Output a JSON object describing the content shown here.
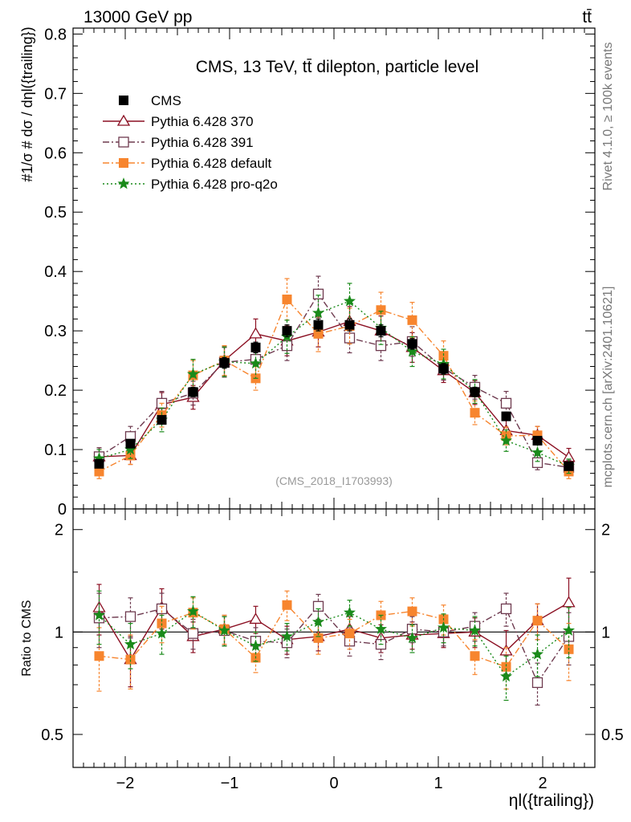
{
  "header": {
    "left": "13000 GeV pp",
    "right": "tt̄"
  },
  "side_labels": {
    "rivet": "Rivet 4.1.0, ≥ 100k events",
    "mcplots": "mcplots.cern.ch [arXiv:2401.10621]"
  },
  "chart_data": [
    {
      "type": "scatter",
      "panel": "main",
      "title": "CMS, 13 TeV, tt̄ dilepton, particle level",
      "watermark": "(CMS_2018_I1703993)",
      "ylabel": "#1/σ # dσ / dηl({trailing})",
      "xlabel": "ηl({trailing})",
      "xlim": [
        -2.5,
        2.5
      ],
      "ylim": [
        0,
        0.81
      ],
      "yticks": [
        "0",
        "0.1",
        "0.2",
        "0.3",
        "0.4",
        "0.5",
        "0.6",
        "0.7",
        "0.8"
      ],
      "x": [
        -2.25,
        -1.95,
        -1.65,
        -1.35,
        -1.05,
        -0.75,
        -0.45,
        -0.15,
        0.15,
        0.45,
        0.75,
        1.05,
        1.35,
        1.65,
        1.95,
        2.25
      ],
      "series": [
        {
          "name": "CMS",
          "color": "#000000",
          "marker": "filled-square",
          "line": "none",
          "values": [
            0.076,
            0.11,
            0.15,
            0.197,
            0.246,
            0.272,
            0.3,
            0.31,
            0.31,
            0.3,
            0.278,
            0.236,
            0.197,
            0.156,
            0.115,
            0.072
          ],
          "errors": [
            0.006,
            0.006,
            0.007,
            0.008,
            0.009,
            0.009,
            0.01,
            0.01,
            0.01,
            0.01,
            0.009,
            0.009,
            0.008,
            0.007,
            0.006,
            0.006
          ]
        },
        {
          "name": "Pythia 6.428 370",
          "color": "#8b0f22",
          "marker": "open-triangle",
          "line": "solid",
          "values": [
            0.088,
            0.09,
            0.176,
            0.188,
            0.25,
            0.295,
            0.283,
            0.298,
            0.316,
            0.3,
            0.272,
            0.233,
            0.196,
            0.132,
            0.124,
            0.087
          ],
          "errors": [
            0.015,
            0.015,
            0.02,
            0.02,
            0.025,
            0.025,
            0.025,
            0.025,
            0.025,
            0.025,
            0.025,
            0.02,
            0.02,
            0.02,
            0.015,
            0.015
          ]
        },
        {
          "name": "Pythia 6.428 391",
          "color": "#6e3a4f",
          "marker": "open-square",
          "line": "dashdot",
          "values": [
            0.088,
            0.122,
            0.178,
            0.195,
            0.247,
            0.252,
            0.275,
            0.362,
            0.288,
            0.275,
            0.282,
            0.237,
            0.205,
            0.178,
            0.078,
            0.07
          ],
          "errors": [
            0.015,
            0.017,
            0.02,
            0.02,
            0.025,
            0.025,
            0.025,
            0.03,
            0.025,
            0.025,
            0.025,
            0.02,
            0.02,
            0.02,
            0.012,
            0.012
          ]
        },
        {
          "name": "Pythia 6.428 default",
          "color": "#f7852e",
          "marker": "filled-square",
          "line": "dashdot",
          "values": [
            0.063,
            0.09,
            0.158,
            0.225,
            0.25,
            0.22,
            0.353,
            0.295,
            0.308,
            0.335,
            0.318,
            0.258,
            0.162,
            0.123,
            0.124,
            0.063
          ],
          "errors": [
            0.012,
            0.015,
            0.02,
            0.025,
            0.025,
            0.02,
            0.035,
            0.03,
            0.03,
            0.03,
            0.03,
            0.025,
            0.02,
            0.015,
            0.015,
            0.012
          ]
        },
        {
          "name": "Pythia 6.428 pro-q2o",
          "color": "#1a8a1a",
          "marker": "star",
          "line": "dotted",
          "values": [
            0.085,
            0.1,
            0.15,
            0.227,
            0.248,
            0.245,
            0.29,
            0.33,
            0.35,
            0.305,
            0.265,
            0.244,
            0.198,
            0.115,
            0.095,
            0.072
          ],
          "errors": [
            0.015,
            0.015,
            0.02,
            0.025,
            0.025,
            0.025,
            0.028,
            0.03,
            0.03,
            0.028,
            0.025,
            0.025,
            0.02,
            0.018,
            0.015,
            0.012
          ]
        }
      ]
    },
    {
      "type": "scatter",
      "panel": "ratio",
      "ylabel": "Ratio to CMS",
      "xlabel": "ηl({trailing})",
      "xlim": [
        -2.5,
        2.5
      ],
      "ylim": [
        0.4,
        2.3
      ],
      "yscale": "log",
      "yticks": [
        "0.5",
        "1",
        "2"
      ],
      "xticks": [
        "−2",
        "−1",
        "0",
        "1",
        "2"
      ],
      "x": [
        -2.25,
        -1.95,
        -1.65,
        -1.35,
        -1.05,
        -0.75,
        -0.45,
        -0.15,
        0.15,
        0.45,
        0.75,
        1.05,
        1.35,
        1.65,
        1.95,
        2.25
      ],
      "series": [
        {
          "name": "Pythia 6.428 370",
          "color": "#8b0f22",
          "marker": "open-triangle",
          "line": "solid",
          "values": [
            1.18,
            0.83,
            1.18,
            0.97,
            1.02,
            1.09,
            0.95,
            0.97,
            1.02,
            0.96,
            0.98,
            0.99,
            1.0,
            0.88,
            1.08,
            1.22
          ],
          "errors": [
            0.2,
            0.14,
            0.16,
            0.1,
            0.1,
            0.1,
            0.09,
            0.09,
            0.09,
            0.09,
            0.09,
            0.09,
            0.1,
            0.13,
            0.13,
            0.22
          ]
        },
        {
          "name": "Pythia 6.428 391",
          "color": "#6e3a4f",
          "marker": "open-square",
          "line": "dashdot",
          "values": [
            1.1,
            1.11,
            1.17,
            0.99,
            1.01,
            0.94,
            0.93,
            1.19,
            0.94,
            0.92,
            1.02,
            1.0,
            1.04,
            1.17,
            0.71,
            0.97
          ],
          "errors": [
            0.2,
            0.15,
            0.13,
            0.1,
            0.1,
            0.09,
            0.09,
            0.1,
            0.09,
            0.09,
            0.09,
            0.09,
            0.1,
            0.13,
            0.1,
            0.17
          ]
        },
        {
          "name": "Pythia 6.428 default",
          "color": "#f7852e",
          "marker": "filled-square",
          "line": "dashdot",
          "values": [
            0.85,
            0.83,
            1.06,
            1.14,
            1.02,
            0.84,
            1.2,
            0.96,
            0.99,
            1.12,
            1.15,
            1.09,
            0.85,
            0.79,
            1.08,
            0.89
          ],
          "errors": [
            0.18,
            0.15,
            0.13,
            0.12,
            0.1,
            0.08,
            0.12,
            0.1,
            0.1,
            0.11,
            0.11,
            0.11,
            0.1,
            0.11,
            0.13,
            0.17
          ]
        },
        {
          "name": "Pythia 6.428 pro-q2o",
          "color": "#1a8a1a",
          "marker": "star",
          "line": "dotted",
          "values": [
            1.12,
            0.92,
            0.99,
            1.15,
            1.01,
            0.91,
            0.97,
            1.07,
            1.14,
            1.02,
            0.96,
            1.03,
            1.01,
            0.74,
            0.86,
            1.01
          ],
          "errors": [
            0.2,
            0.14,
            0.13,
            0.12,
            0.1,
            0.09,
            0.09,
            0.1,
            0.1,
            0.1,
            0.09,
            0.1,
            0.1,
            0.11,
            0.12,
            0.17
          ]
        }
      ]
    }
  ]
}
